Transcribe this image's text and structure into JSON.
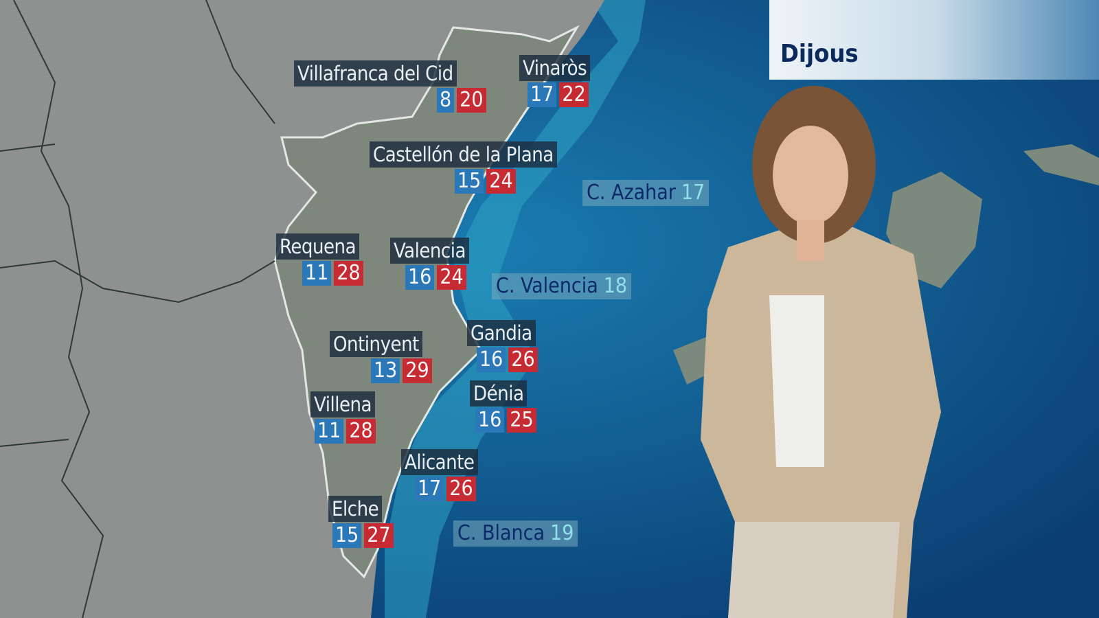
{
  "day_label": "Dijous",
  "colors": {
    "min_temp": "#2a78b8",
    "max_temp": "#c62a33",
    "sea": "#0d4f86",
    "land": "#8c8f8c"
  },
  "cities": [
    {
      "name": "Villafranca del Cid",
      "min": "8",
      "max": "20"
    },
    {
      "name": "Vinaròs",
      "min": "17",
      "max": "22"
    },
    {
      "name": "Castellón de la Plana",
      "min": "15",
      "max": "24"
    },
    {
      "name": "Requena",
      "min": "11",
      "max": "28"
    },
    {
      "name": "Valencia",
      "min": "16",
      "max": "24"
    },
    {
      "name": "Ontinyent",
      "min": "13",
      "max": "29"
    },
    {
      "name": "Gandia",
      "min": "16",
      "max": "26"
    },
    {
      "name": "Villena",
      "min": "11",
      "max": "28"
    },
    {
      "name": "Dénia",
      "min": "16",
      "max": "25"
    },
    {
      "name": "Alicante",
      "min": "17",
      "max": "26"
    },
    {
      "name": "Elche",
      "min": "15",
      "max": "27"
    }
  ],
  "sea_zones": [
    {
      "name": "C. Azahar",
      "temp": "17"
    },
    {
      "name": "C. Valencia",
      "temp": "18"
    },
    {
      "name": "C. Blanca",
      "temp": "19"
    }
  ]
}
